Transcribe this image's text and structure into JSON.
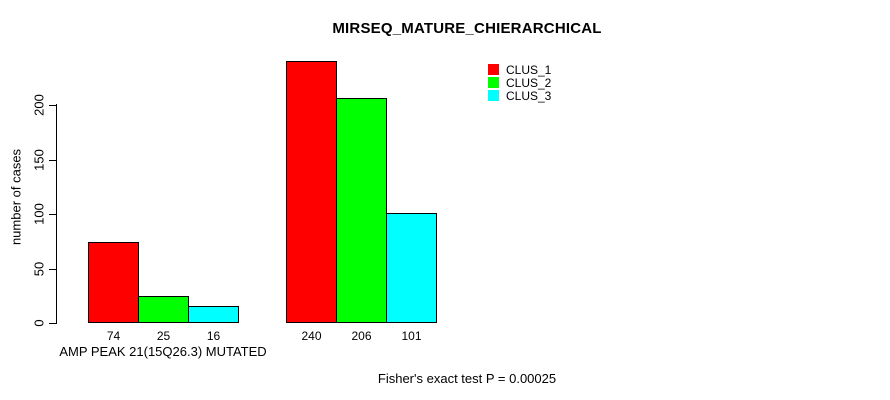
{
  "chart_data": {
    "type": "bar",
    "title": "MIRSEQ_MATURE_CHIERARCHICAL",
    "ylabel": "number of cases",
    "xlabel": "",
    "ylim": [
      0,
      240
    ],
    "yticks": [
      0,
      50,
      100,
      150,
      200
    ],
    "grid": false,
    "legend_position": "top-right",
    "background": "#ffffff",
    "axis_color": "#000000",
    "series": [
      {
        "name": "CLUS_1",
        "color": "#ff0000"
      },
      {
        "name": "CLUS_2",
        "color": "#00ff00"
      },
      {
        "name": "CLUS_3",
        "color": "#00ffff"
      }
    ],
    "groups": [
      {
        "label": "AMP PEAK 21(15Q26.3) MUTATED",
        "values": [
          74,
          25,
          16
        ]
      },
      {
        "label": "",
        "values": [
          240,
          206,
          101
        ]
      }
    ],
    "footnote": "Fisher's exact test P = 0.00025"
  }
}
